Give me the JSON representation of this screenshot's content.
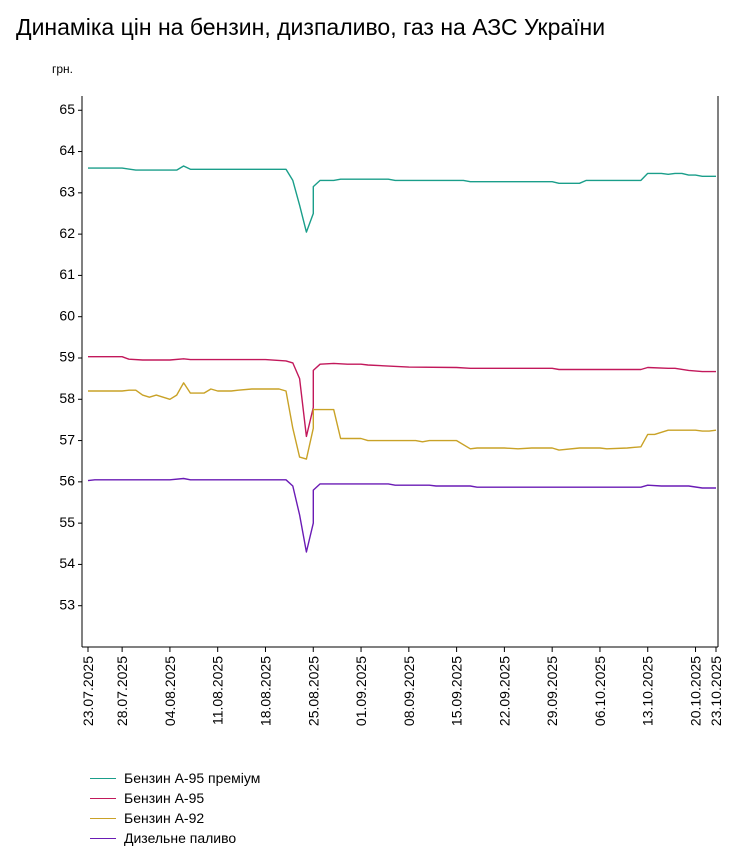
{
  "chart_data": {
    "type": "line",
    "title": "Динаміка цін на бензин, дизпаливо, газ на АЗС України",
    "ylabel": "грн.",
    "ylim": [
      52,
      65.2
    ],
    "yticks": [
      "53",
      "54",
      "55",
      "56",
      "57",
      "58",
      "59",
      "60",
      "61",
      "62",
      "63",
      "64",
      "65"
    ],
    "x_start": "2025-07-23",
    "x_end": "2025-10-23",
    "x_tick_labels": [
      "23.07.2025",
      "28.07.2025",
      "04.08.2025",
      "11.08.2025",
      "18.08.2025",
      "25.08.2025",
      "01.09.2025",
      "08.09.2025",
      "15.09.2025",
      "22.09.2025",
      "29.09.2025",
      "06.10.2025",
      "13.10.2025",
      "20.10.2025",
      "23.10.2025"
    ],
    "grid": false,
    "legend_position": "bottom-left",
    "series": [
      {
        "name": "Бензин А-95 преміум",
        "color": "#1a9e8a",
        "points": [
          [
            "2025-07-23",
            63.6
          ],
          [
            "2025-07-28",
            63.6
          ],
          [
            "2025-07-30",
            63.55
          ],
          [
            "2025-08-04",
            63.55
          ],
          [
            "2025-08-05",
            63.55
          ],
          [
            "2025-08-06",
            63.65
          ],
          [
            "2025-08-07",
            63.57
          ],
          [
            "2025-08-18",
            63.57
          ],
          [
            "2025-08-21",
            63.57
          ],
          [
            "2025-08-22",
            63.3
          ],
          [
            "2025-08-23",
            62.7
          ],
          [
            "2025-08-24",
            62.05
          ],
          [
            "2025-08-25",
            62.5
          ],
          [
            "2025-08-25",
            63.15
          ],
          [
            "2025-08-26",
            63.3
          ],
          [
            "2025-08-28",
            63.3
          ],
          [
            "2025-08-29",
            63.33
          ],
          [
            "2025-09-01",
            63.33
          ],
          [
            "2025-09-05",
            63.33
          ],
          [
            "2025-09-06",
            63.3
          ],
          [
            "2025-09-15",
            63.3
          ],
          [
            "2025-09-16",
            63.3
          ],
          [
            "2025-09-17",
            63.27
          ],
          [
            "2025-09-29",
            63.27
          ],
          [
            "2025-09-30",
            63.23
          ],
          [
            "2025-10-03",
            63.23
          ],
          [
            "2025-10-04",
            63.3
          ],
          [
            "2025-10-12",
            63.3
          ],
          [
            "2025-10-13",
            63.47
          ],
          [
            "2025-10-15",
            63.47
          ],
          [
            "2025-10-16",
            63.45
          ],
          [
            "2025-10-17",
            63.47
          ],
          [
            "2025-10-18",
            63.47
          ],
          [
            "2025-10-19",
            63.43
          ],
          [
            "2025-10-20",
            63.43
          ],
          [
            "2025-10-21",
            63.4
          ],
          [
            "2025-10-23",
            63.4
          ]
        ]
      },
      {
        "name": "Бензин А-95",
        "color": "#c2185b",
        "points": [
          [
            "2025-07-23",
            59.03
          ],
          [
            "2025-07-28",
            59.03
          ],
          [
            "2025-07-29",
            58.97
          ],
          [
            "2025-07-31",
            58.95
          ],
          [
            "2025-08-04",
            58.95
          ],
          [
            "2025-08-06",
            58.98
          ],
          [
            "2025-08-07",
            58.96
          ],
          [
            "2025-08-18",
            58.96
          ],
          [
            "2025-08-21",
            58.93
          ],
          [
            "2025-08-22",
            58.88
          ],
          [
            "2025-08-23",
            58.5
          ],
          [
            "2025-08-24",
            57.1
          ],
          [
            "2025-08-25",
            57.8
          ],
          [
            "2025-08-25",
            58.7
          ],
          [
            "2025-08-26",
            58.85
          ],
          [
            "2025-08-28",
            58.87
          ],
          [
            "2025-08-30",
            58.85
          ],
          [
            "2025-09-01",
            58.85
          ],
          [
            "2025-09-02",
            58.83
          ],
          [
            "2025-09-08",
            58.78
          ],
          [
            "2025-09-15",
            58.77
          ],
          [
            "2025-09-17",
            58.75
          ],
          [
            "2025-09-29",
            58.75
          ],
          [
            "2025-09-30",
            58.72
          ],
          [
            "2025-10-12",
            58.72
          ],
          [
            "2025-10-13",
            58.77
          ],
          [
            "2025-10-16",
            58.75
          ],
          [
            "2025-10-17",
            58.75
          ],
          [
            "2025-10-19",
            58.7
          ],
          [
            "2025-10-21",
            58.67
          ],
          [
            "2025-10-23",
            58.67
          ]
        ]
      },
      {
        "name": "Бензин А-92",
        "color": "#c9a227",
        "points": [
          [
            "2025-07-23",
            58.2
          ],
          [
            "2025-07-28",
            58.2
          ],
          [
            "2025-07-29",
            58.22
          ],
          [
            "2025-07-30",
            58.22
          ],
          [
            "2025-07-31",
            58.1
          ],
          [
            "2025-08-01",
            58.05
          ],
          [
            "2025-08-02",
            58.1
          ],
          [
            "2025-08-03",
            58.05
          ],
          [
            "2025-08-04",
            58.0
          ],
          [
            "2025-08-05",
            58.1
          ],
          [
            "2025-08-06",
            58.4
          ],
          [
            "2025-08-07",
            58.15
          ],
          [
            "2025-08-08",
            58.15
          ],
          [
            "2025-08-09",
            58.15
          ],
          [
            "2025-08-10",
            58.25
          ],
          [
            "2025-08-11",
            58.2
          ],
          [
            "2025-08-12",
            58.2
          ],
          [
            "2025-08-13",
            58.2
          ],
          [
            "2025-08-14",
            58.22
          ],
          [
            "2025-08-16",
            58.25
          ],
          [
            "2025-08-18",
            58.25
          ],
          [
            "2025-08-20",
            58.25
          ],
          [
            "2025-08-21",
            58.2
          ],
          [
            "2025-08-22",
            57.3
          ],
          [
            "2025-08-23",
            56.6
          ],
          [
            "2025-08-24",
            56.55
          ],
          [
            "2025-08-25",
            57.3
          ],
          [
            "2025-08-25",
            57.75
          ],
          [
            "2025-08-27",
            57.75
          ],
          [
            "2025-08-28",
            57.75
          ],
          [
            "2025-08-29",
            57.05
          ],
          [
            "2025-09-01",
            57.05
          ],
          [
            "2025-09-02",
            57.0
          ],
          [
            "2025-09-08",
            57.0
          ],
          [
            "2025-09-09",
            57.0
          ],
          [
            "2025-09-10",
            56.97
          ],
          [
            "2025-09-11",
            57.0
          ],
          [
            "2025-09-15",
            57.0
          ],
          [
            "2025-09-17",
            56.8
          ],
          [
            "2025-09-18",
            56.82
          ],
          [
            "2025-09-22",
            56.82
          ],
          [
            "2025-09-24",
            56.8
          ],
          [
            "2025-09-26",
            56.82
          ],
          [
            "2025-09-29",
            56.82
          ],
          [
            "2025-09-30",
            56.77
          ],
          [
            "2025-10-03",
            56.82
          ],
          [
            "2025-10-06",
            56.82
          ],
          [
            "2025-10-07",
            56.8
          ],
          [
            "2025-10-10",
            56.82
          ],
          [
            "2025-10-12",
            56.85
          ],
          [
            "2025-10-13",
            57.15
          ],
          [
            "2025-10-14",
            57.15
          ],
          [
            "2025-10-15",
            57.2
          ],
          [
            "2025-10-16",
            57.25
          ],
          [
            "2025-10-17",
            57.25
          ],
          [
            "2025-10-20",
            57.25
          ],
          [
            "2025-10-21",
            57.23
          ],
          [
            "2025-10-22",
            57.23
          ],
          [
            "2025-10-23",
            57.25
          ]
        ]
      },
      {
        "name": "Дизельне паливо",
        "color": "#6a1bb5",
        "points": [
          [
            "2025-07-23",
            56.03
          ],
          [
            "2025-07-24",
            56.05
          ],
          [
            "2025-08-04",
            56.05
          ],
          [
            "2025-08-06",
            56.08
          ],
          [
            "2025-08-07",
            56.05
          ],
          [
            "2025-08-18",
            56.05
          ],
          [
            "2025-08-21",
            56.05
          ],
          [
            "2025-08-22",
            55.9
          ],
          [
            "2025-08-23",
            55.2
          ],
          [
            "2025-08-24",
            54.3
          ],
          [
            "2025-08-25",
            55.0
          ],
          [
            "2025-08-25",
            55.8
          ],
          [
            "2025-08-26",
            55.95
          ],
          [
            "2025-09-05",
            55.95
          ],
          [
            "2025-09-06",
            55.92
          ],
          [
            "2025-09-11",
            55.92
          ],
          [
            "2025-09-12",
            55.9
          ],
          [
            "2025-09-17",
            55.9
          ],
          [
            "2025-09-18",
            55.87
          ],
          [
            "2025-10-12",
            55.87
          ],
          [
            "2025-10-13",
            55.92
          ],
          [
            "2025-10-15",
            55.9
          ],
          [
            "2025-10-19",
            55.9
          ],
          [
            "2025-10-21",
            55.85
          ],
          [
            "2025-10-23",
            55.85
          ]
        ]
      }
    ]
  }
}
